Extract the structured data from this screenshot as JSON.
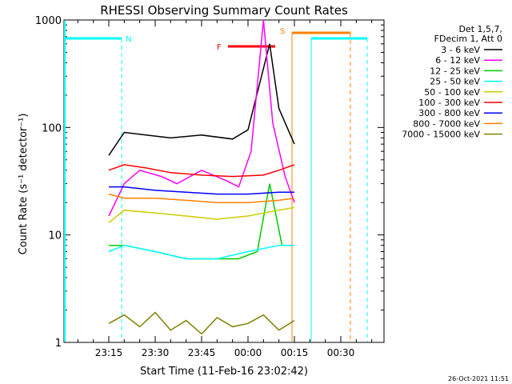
{
  "chart_data": {
    "type": "line",
    "title": "RHESSI Observing Summary Count Rates",
    "xlabel": "Start Time (11-Feb-16 23:02:42)",
    "ylabel": "Count Rate (s⁻¹ detector⁻¹)",
    "ylog": true,
    "ylim": [
      1,
      1000
    ],
    "x_tick_labels": [
      "23:15",
      "23:30",
      "23:45",
      "00:00",
      "00:15",
      "00:30"
    ],
    "y_tick_labels": [
      "1",
      "10",
      "100",
      "1000"
    ],
    "legend_header": [
      "Det 1,5,7,",
      "FDecim 1, Att 0"
    ],
    "legend_position": "right",
    "footer_date": "26-Oct-2021 11:51",
    "flags": {
      "N": "N",
      "F": "F",
      "S": "S"
    },
    "series": [
      {
        "name": "3 - 6 keV",
        "color": "#000000",
        "x_min": [
          0,
          5,
          12,
          20,
          30,
          40,
          45,
          52,
          55,
          60
        ],
        "values": [
          55,
          90,
          85,
          80,
          85,
          78,
          95,
          600,
          150,
          70
        ]
      },
      {
        "name": "6 - 12 keV",
        "color": "#ff00ff",
        "x_min": [
          0,
          5,
          10,
          17,
          22,
          30,
          38,
          42,
          46,
          50,
          53,
          57,
          60
        ],
        "values": [
          15,
          30,
          40,
          35,
          30,
          40,
          32,
          28,
          60,
          1000,
          110,
          35,
          20
        ]
      },
      {
        "name": "12 - 25 keV",
        "color": "#00cc00",
        "x_min": [
          0,
          5,
          15,
          25,
          35,
          42,
          48,
          52,
          56,
          60
        ],
        "values": [
          8,
          8,
          7,
          6,
          6,
          6,
          7,
          30,
          8,
          8
        ]
      },
      {
        "name": "25 - 50 keV",
        "color": "#00ffff",
        "x_min": [
          0,
          5,
          15,
          25,
          35,
          45,
          55,
          60
        ],
        "values": [
          7,
          8,
          7,
          6,
          6,
          7,
          8,
          8
        ]
      },
      {
        "name": "50 - 100 keV",
        "color": "#cccc00",
        "x_min": [
          0,
          5,
          15,
          25,
          35,
          45,
          55,
          60
        ],
        "values": [
          13,
          17,
          16,
          15,
          14,
          15,
          17,
          18
        ]
      },
      {
        "name": "100 - 300 keV",
        "color": "#ff0000",
        "x_min": [
          0,
          5,
          12,
          20,
          30,
          40,
          50,
          55,
          60
        ],
        "values": [
          40,
          45,
          42,
          38,
          36,
          35,
          36,
          40,
          45
        ]
      },
      {
        "name": "300 - 800 keV",
        "color": "#0000ff",
        "x_min": [
          0,
          5,
          15,
          25,
          35,
          45,
          55,
          60
        ],
        "values": [
          28,
          28,
          26,
          25,
          24,
          24,
          25,
          25
        ]
      },
      {
        "name": "800 - 7000 keV",
        "color": "#ff8000",
        "x_min": [
          0,
          5,
          15,
          25,
          35,
          45,
          55,
          60
        ],
        "values": [
          24,
          22,
          22,
          21,
          20,
          20,
          21,
          22
        ]
      },
      {
        "name": "7000 - 15000 keV",
        "color": "#808000",
        "x_min": [
          0,
          5,
          10,
          15,
          20,
          25,
          30,
          35,
          40,
          45,
          50,
          55,
          60
        ],
        "values": [
          1.5,
          1.8,
          1.4,
          1.9,
          1.3,
          1.6,
          1.2,
          1.7,
          1.4,
          1.5,
          1.8,
          1.3,
          1.6
        ]
      }
    ],
    "flag_markers": [
      {
        "label": "N",
        "color": "#00ffff"
      },
      {
        "label": "F",
        "color": "#ff0000"
      },
      {
        "label": "S",
        "color": "#ff8000"
      }
    ]
  }
}
